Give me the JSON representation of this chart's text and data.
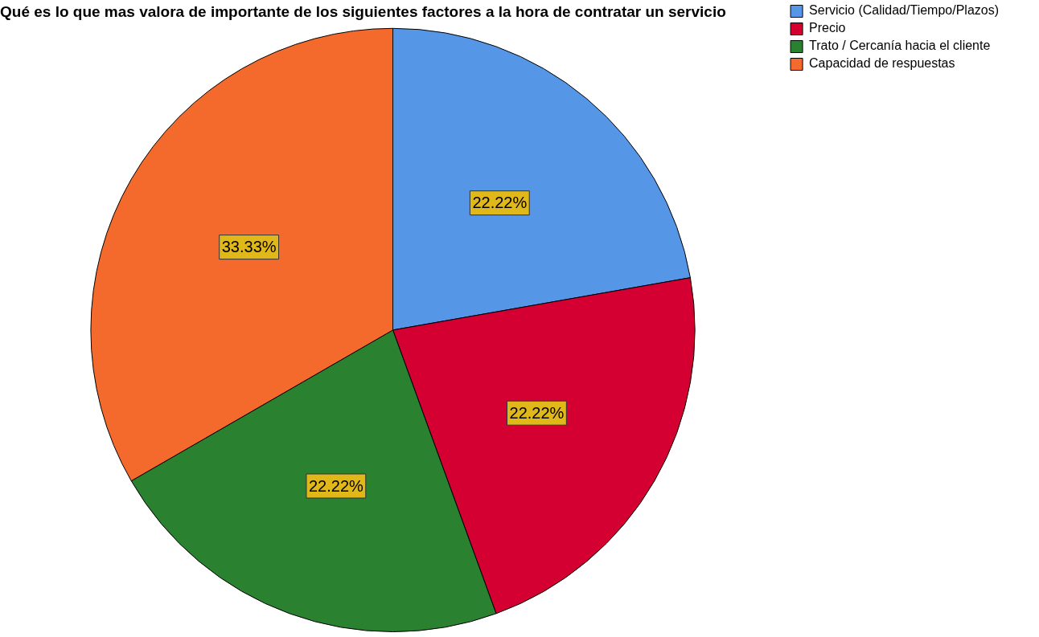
{
  "chart_data": {
    "type": "pie",
    "title": "Qué es lo que mas valora de importante de los siguientes factores a la hora de contratar un servicio",
    "categories": [
      "Servicio (Calidad/Tiempo/Plazos)",
      "Precio",
      "Trato / Cercanía hacia el cliente",
      "Capacidad de respuestas"
    ],
    "values": [
      22.22,
      22.22,
      22.22,
      33.33
    ],
    "colors": [
      "#5596e6",
      "#d50032",
      "#2a8230",
      "#f36a2c"
    ],
    "value_labels": [
      "22.22%",
      "22.22%",
      "22.22%",
      "33.33%"
    ],
    "legend": "top right"
  }
}
